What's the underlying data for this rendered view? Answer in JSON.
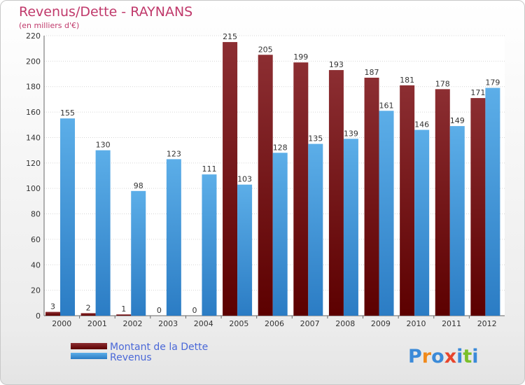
{
  "chart_data": {
    "type": "bar",
    "title": "Revenus/Dette - RAYNANS",
    "subtitle": "(en milliers d'€)",
    "categories": [
      "2000",
      "2001",
      "2002",
      "2003",
      "2004",
      "2005",
      "2006",
      "2007",
      "2008",
      "2009",
      "2010",
      "2011",
      "2012"
    ],
    "series": [
      {
        "name": "Montant de la Dette",
        "color": "#7a1414",
        "values": [
          3,
          2,
          1,
          0,
          0,
          215,
          205,
          199,
          193,
          187,
          181,
          178,
          171
        ]
      },
      {
        "name": "Revenus",
        "color": "#3a8fd6",
        "values": [
          155,
          130,
          98,
          123,
          111,
          103,
          128,
          135,
          139,
          161,
          146,
          149,
          179
        ]
      }
    ],
    "ylim": [
      0,
      220
    ],
    "yticks": [
      0,
      20,
      40,
      60,
      80,
      100,
      120,
      140,
      160,
      180,
      200,
      220
    ],
    "grid": true,
    "legend_position": "bottom-left"
  },
  "branding": {
    "logo_letters": [
      "P",
      "r",
      "o",
      "x",
      "i",
      "t",
      "i"
    ],
    "logo_colors": [
      "#3b8ad8",
      "#f08a1c",
      "#3b8ad8",
      "#e8452c",
      "#3b8ad8",
      "#7bbf2a",
      "#3b8ad8"
    ]
  }
}
